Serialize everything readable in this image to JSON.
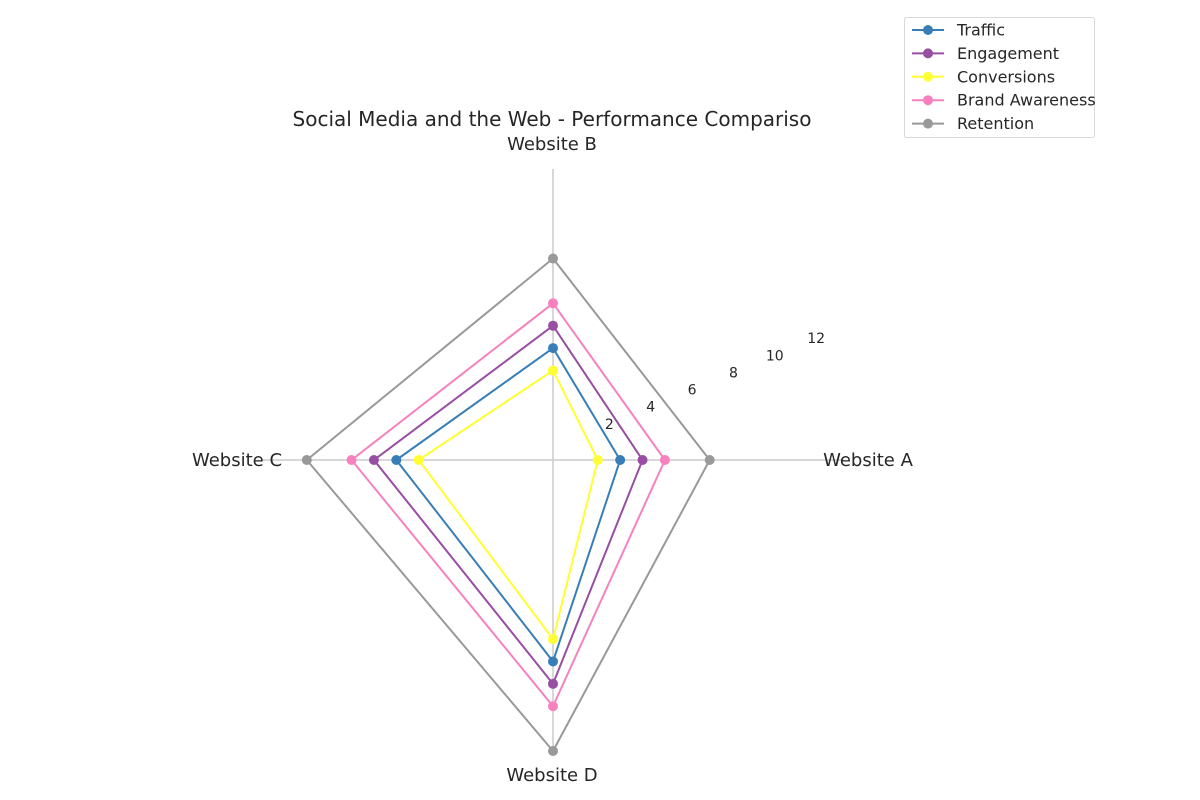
{
  "chart_data": {
    "type": "radar",
    "title": "Social Media and the Web - Performance Compariso",
    "categories": [
      "Website A",
      "Website B",
      "Website C",
      "Website D"
    ],
    "radial_ticks": [
      2,
      4,
      6,
      8,
      10,
      12
    ],
    "rmax": 13,
    "series": [
      {
        "name": "Traffic",
        "values": [
          3,
          5,
          7,
          9
        ],
        "color": "#377eb8"
      },
      {
        "name": "Engagement",
        "values": [
          4,
          6,
          8,
          10
        ],
        "color": "#984ea3"
      },
      {
        "name": "Conversions",
        "values": [
          2,
          4,
          6,
          8
        ],
        "color": "#ffff33"
      },
      {
        "name": "Brand Awareness",
        "values": [
          5,
          7,
          9,
          11
        ],
        "color": "#f781bf"
      },
      {
        "name": "Retention",
        "values": [
          7,
          9,
          11,
          13
        ],
        "color": "#999999"
      }
    ],
    "legend_position": "top-right",
    "grid_color": "#cccccc"
  }
}
